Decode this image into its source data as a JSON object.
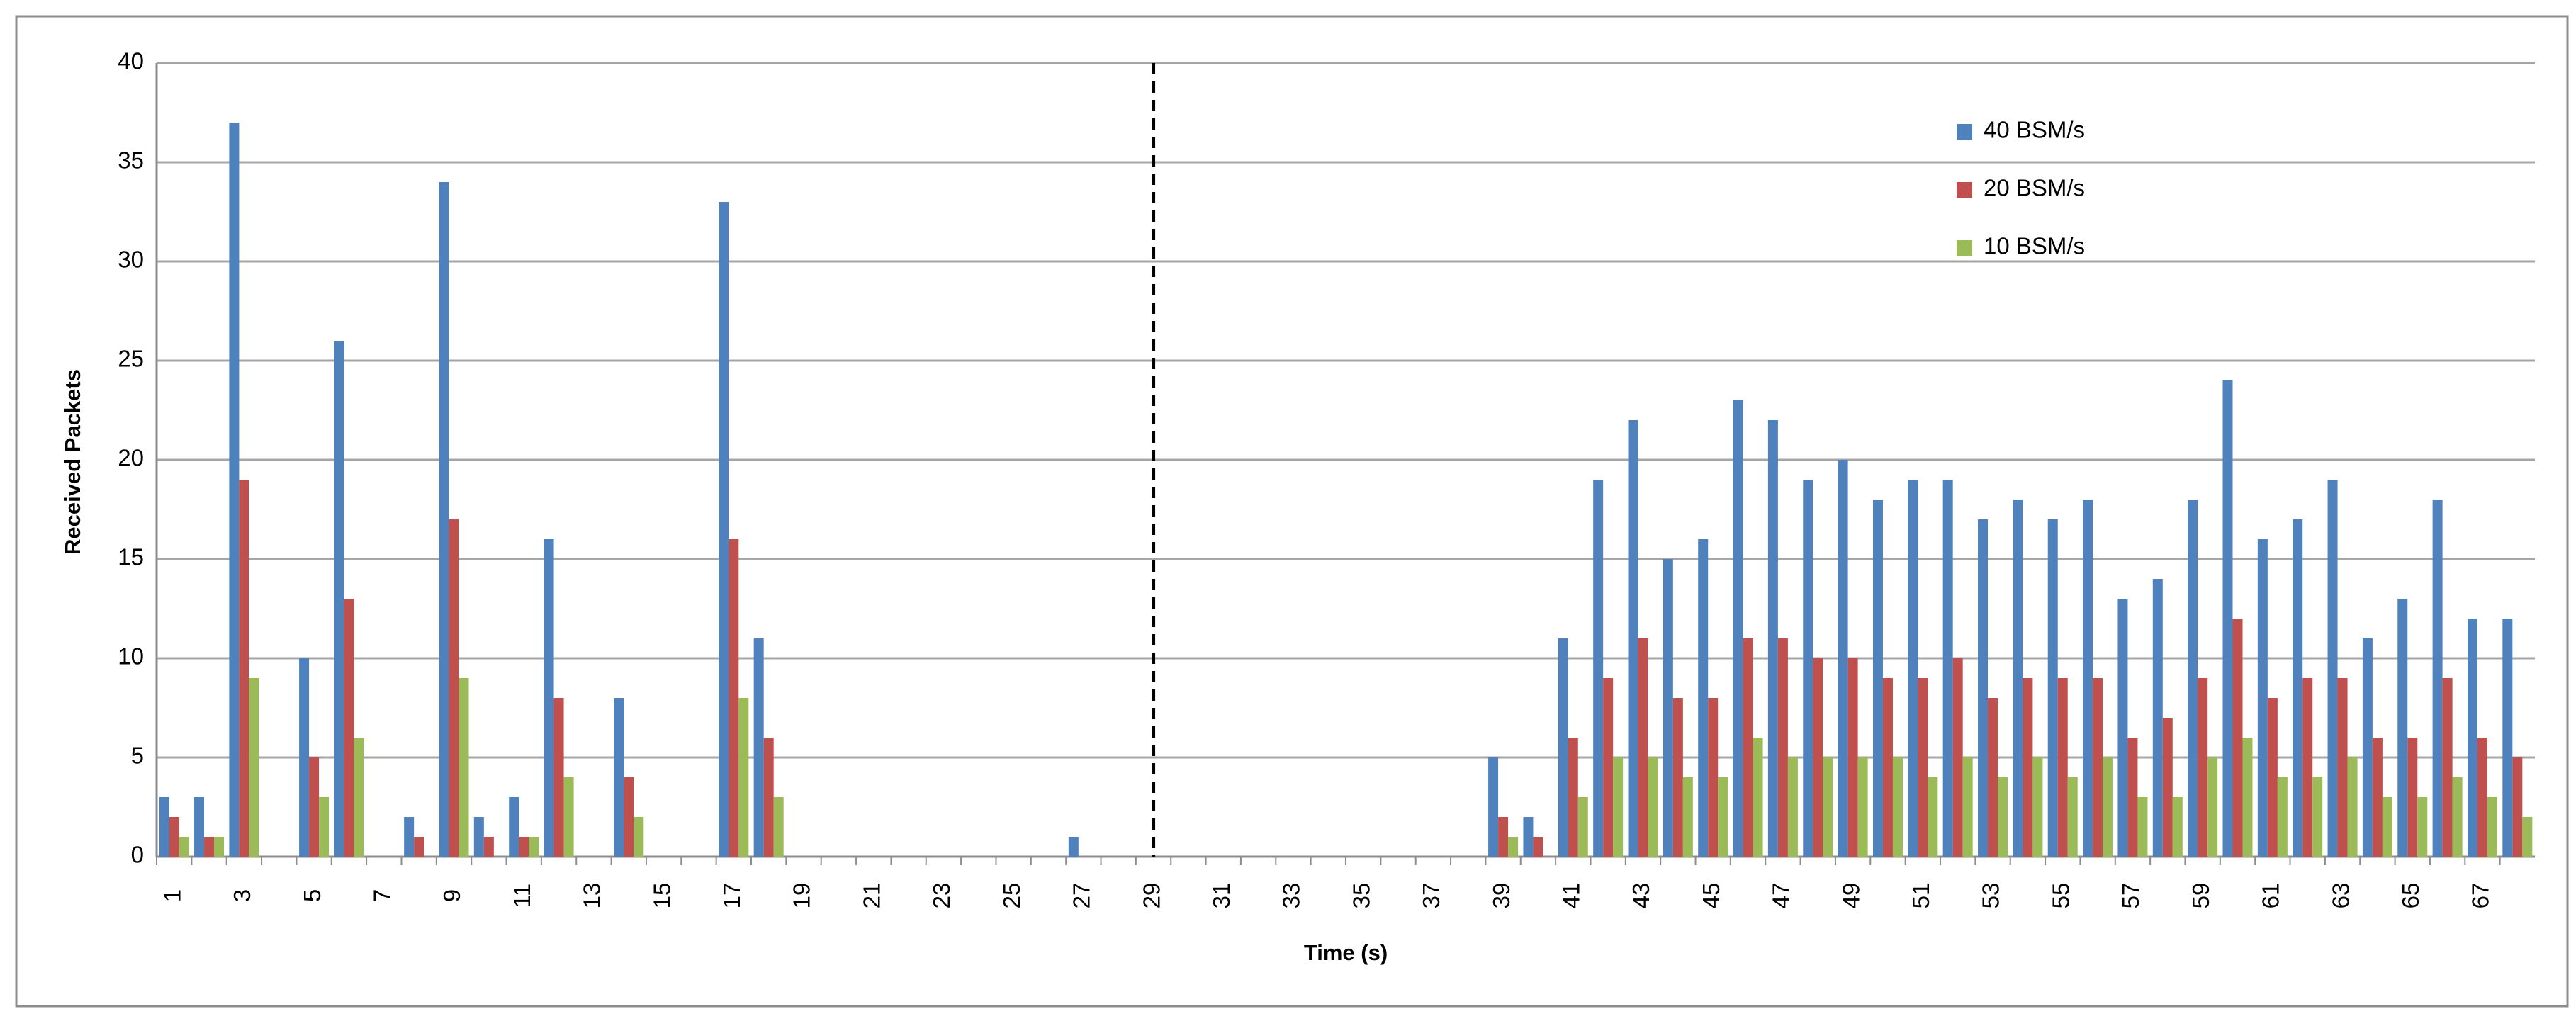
{
  "chart_data": {
    "type": "bar",
    "x_label": "Time (s)",
    "y_label": "Received Packets",
    "categories": [
      1,
      null,
      3,
      null,
      5,
      null,
      7,
      null,
      9,
      null,
      11,
      null,
      13,
      null,
      15,
      null,
      17,
      null,
      19,
      null,
      21,
      null,
      23,
      null,
      25,
      null,
      27,
      null,
      29,
      null,
      31,
      null,
      33,
      null,
      35,
      null,
      37,
      null,
      39,
      null,
      41,
      null,
      43,
      null,
      45,
      null,
      47,
      null,
      49,
      null,
      51,
      null,
      53,
      null,
      55,
      null,
      57,
      null,
      59,
      null,
      61,
      null,
      63,
      null,
      65,
      null,
      67,
      null
    ],
    "series": [
      {
        "name": "40 BSM/s",
        "color": "#4f81bd",
        "values": [
          3,
          3,
          37,
          0,
          10,
          26,
          0,
          2,
          34,
          2,
          3,
          16,
          0,
          8,
          0,
          0,
          33,
          11,
          0,
          0,
          0,
          0,
          0,
          0,
          0,
          0,
          1,
          0,
          0,
          0,
          0,
          0,
          0,
          0,
          0,
          0,
          0,
          0,
          5,
          2,
          11,
          19,
          22,
          15,
          16,
          23,
          22,
          19,
          20,
          18,
          19,
          19,
          17,
          18,
          17,
          18,
          13,
          14,
          18,
          24,
          16,
          17,
          19,
          11,
          13,
          18,
          12,
          12
        ]
      },
      {
        "name": "20 BSM/s",
        "color": "#c0504d",
        "values": [
          2,
          1,
          19,
          0,
          5,
          13,
          0,
          1,
          17,
          1,
          1,
          8,
          0,
          4,
          0,
          0,
          16,
          6,
          0,
          0,
          0,
          0,
          0,
          0,
          0,
          0,
          0,
          0,
          0,
          0,
          0,
          0,
          0,
          0,
          0,
          0,
          0,
          0,
          2,
          1,
          6,
          9,
          11,
          8,
          8,
          11,
          11,
          10,
          10,
          9,
          9,
          10,
          8,
          9,
          9,
          9,
          6,
          7,
          9,
          12,
          8,
          9,
          9,
          6,
          6,
          9,
          6,
          5
        ]
      },
      {
        "name": "10 BSM/s",
        "color": "#9bbb59",
        "values": [
          1,
          1,
          9,
          0,
          3,
          6,
          0,
          0,
          9,
          0,
          1,
          4,
          0,
          2,
          0,
          0,
          8,
          3,
          0,
          0,
          0,
          0,
          0,
          0,
          0,
          0,
          0,
          0,
          0,
          0,
          0,
          0,
          0,
          0,
          0,
          0,
          0,
          0,
          1,
          0,
          3,
          5,
          5,
          4,
          4,
          6,
          5,
          5,
          5,
          5,
          4,
          5,
          4,
          5,
          4,
          5,
          3,
          3,
          5,
          6,
          4,
          4,
          5,
          3,
          3,
          4,
          3,
          2
        ]
      }
    ],
    "ylim": [
      0,
      40
    ],
    "yticks": [
      0,
      5,
      10,
      15,
      20,
      25,
      30,
      35,
      40
    ],
    "grid": true,
    "vline": 29,
    "legend": "upper-right"
  }
}
